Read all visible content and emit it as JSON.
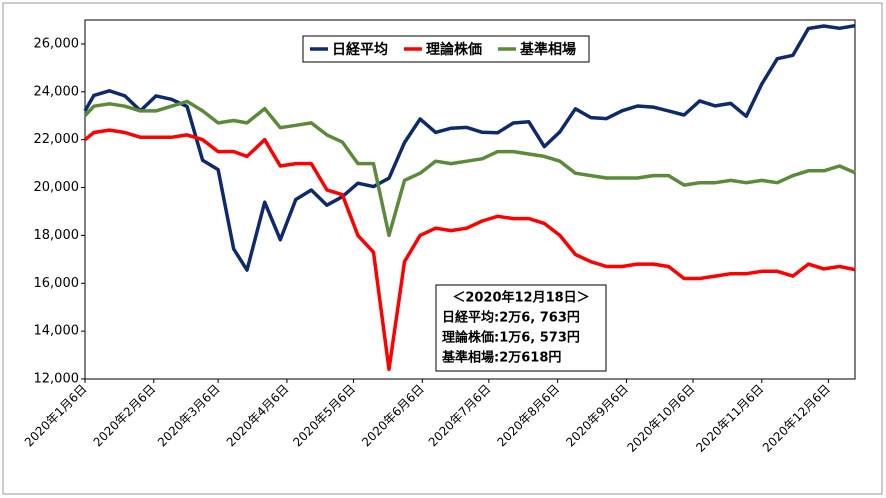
{
  "chart_data": {
    "type": "line",
    "x": [
      "2020-01-06",
      "2020-01-10",
      "2020-01-17",
      "2020-01-24",
      "2020-01-31",
      "2020-02-07",
      "2020-02-14",
      "2020-02-21",
      "2020-02-28",
      "2020-03-06",
      "2020-03-13",
      "2020-03-19",
      "2020-03-27",
      "2020-04-03",
      "2020-04-10",
      "2020-04-17",
      "2020-04-24",
      "2020-05-01",
      "2020-05-08",
      "2020-05-15",
      "2020-05-22",
      "2020-05-29",
      "2020-06-05",
      "2020-06-12",
      "2020-06-19",
      "2020-06-26",
      "2020-07-03",
      "2020-07-10",
      "2020-07-17",
      "2020-07-24",
      "2020-07-31",
      "2020-08-07",
      "2020-08-14",
      "2020-08-21",
      "2020-08-28",
      "2020-09-04",
      "2020-09-11",
      "2020-09-18",
      "2020-09-25",
      "2020-10-02",
      "2020-10-09",
      "2020-10-16",
      "2020-10-23",
      "2020-10-30",
      "2020-11-06",
      "2020-11-13",
      "2020-11-20",
      "2020-11-27",
      "2020-12-04",
      "2020-12-11",
      "2020-12-18"
    ],
    "series": [
      {
        "name": "日経平均",
        "color": "#0d2a6b",
        "values": [
          23204,
          23850,
          24041,
          23827,
          23205,
          23828,
          23688,
          23387,
          21143,
          20750,
          17431,
          16552,
          19389,
          17820,
          19498,
          19897,
          19262,
          19619,
          20179,
          20037,
          20388,
          21877,
          22863,
          22305,
          22478,
          22512,
          22306,
          22290,
          22696,
          22751,
          21710,
          22329,
          23289,
          22920,
          22882,
          23205,
          23406,
          23360,
          23204,
          23029,
          23619,
          23410,
          23516,
          22977,
          24325,
          25385,
          25527,
          26644,
          26751,
          26652,
          26763
        ]
      },
      {
        "name": "理論株価",
        "color": "#ff0000",
        "values": [
          22000,
          22300,
          22400,
          22300,
          22100,
          22100,
          22100,
          22200,
          22000,
          21500,
          21500,
          21300,
          22000,
          20900,
          21000,
          21000,
          19900,
          19700,
          18000,
          17300,
          12400,
          16900,
          18000,
          18300,
          18200,
          18300,
          18600,
          18800,
          18700,
          18700,
          18500,
          18000,
          17200,
          16900,
          16700,
          16700,
          16800,
          16800,
          16700,
          16200,
          16200,
          16300,
          16400,
          16400,
          16500,
          16500,
          16300,
          16800,
          16600,
          16700,
          16573
        ]
      },
      {
        "name": "基準相場",
        "color": "#5b8a3a",
        "values": [
          23000,
          23400,
          23500,
          23400,
          23200,
          23200,
          23400,
          23600,
          23200,
          22700,
          22800,
          22700,
          23300,
          22500,
          22600,
          22700,
          22200,
          21900,
          21000,
          21000,
          18000,
          20300,
          20600,
          21100,
          21000,
          21100,
          21200,
          21500,
          21500,
          21400,
          21300,
          21100,
          20600,
          20500,
          20400,
          20400,
          20400,
          20500,
          20500,
          20100,
          20200,
          20200,
          20300,
          20200,
          20300,
          20200,
          20500,
          20700,
          20700,
          20900,
          20618
        ]
      }
    ],
    "xlim": [
      "2020-01-06",
      "2020-12-18"
    ],
    "xticks": [
      {
        "value": "2020-01-06",
        "label": "2020年1月6日"
      },
      {
        "value": "2020-02-06",
        "label": "2020年2月6日"
      },
      {
        "value": "2020-03-06",
        "label": "2020年3月6日"
      },
      {
        "value": "2020-04-06",
        "label": "2020年4月6日"
      },
      {
        "value": "2020-05-06",
        "label": "2020年5月6日"
      },
      {
        "value": "2020-06-06",
        "label": "2020年6月6日"
      },
      {
        "value": "2020-07-06",
        "label": "2020年7月6日"
      },
      {
        "value": "2020-08-06",
        "label": "2020年8月6日"
      },
      {
        "value": "2020-09-06",
        "label": "2020年9月6日"
      },
      {
        "value": "2020-10-06",
        "label": "2020年10月6日"
      },
      {
        "value": "2020-11-06",
        "label": "2020年11月6日"
      },
      {
        "value": "2020-12-06",
        "label": "2020年12月6日"
      }
    ],
    "ylim": [
      12000,
      27000
    ],
    "yticks": [
      {
        "value": 12000,
        "label": "12,000"
      },
      {
        "value": 14000,
        "label": "14,000"
      },
      {
        "value": 16000,
        "label": "16,000"
      },
      {
        "value": 18000,
        "label": "18,000"
      },
      {
        "value": 20000,
        "label": "20,000"
      },
      {
        "value": 22000,
        "label": "22,000"
      },
      {
        "value": 24000,
        "label": "24,000"
      },
      {
        "value": 26000,
        "label": "26,000"
      }
    ],
    "grid": false,
    "annotations": [
      "＜2020年12月18日＞",
      "日経平均:2万6, 763円",
      "理論株価:1万6, 573円",
      "基準相場:2万618円"
    ]
  }
}
